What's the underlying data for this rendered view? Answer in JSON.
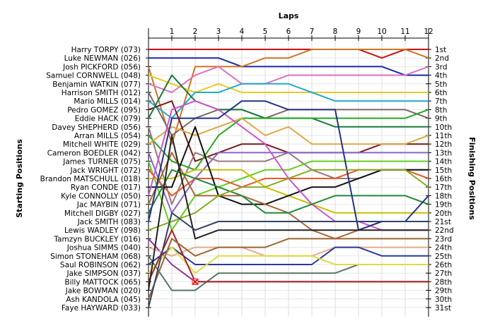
{
  "chart_data": {
    "type": "line",
    "subtype": "lap-chart",
    "title": "",
    "xlabel": "Laps",
    "ylabel_left": "Starting Positions",
    "ylabel_right": "Finishing Positions",
    "laps": [
      1,
      2,
      3,
      4,
      5,
      6,
      7,
      8,
      9,
      10,
      11,
      12
    ],
    "finishing_labels": [
      "1st",
      "2nd",
      "3rd",
      "4th",
      "5th",
      "6th",
      "7th",
      "8th",
      "9th",
      "10th",
      "11th",
      "12th",
      "13th",
      "14th",
      "15th",
      "16th",
      "17th",
      "18th",
      "19th",
      "20th",
      "21st",
      "22nd",
      "23rd",
      "24th",
      "25th",
      "26th",
      "27th",
      "28th",
      "29th",
      "30th",
      "31st"
    ],
    "grid": true,
    "crash_marker": {
      "lap": 2,
      "position": 28,
      "color": "#dd1111"
    },
    "series": [
      {
        "name": "Harry TORPY (073)",
        "color": "#cc1111",
        "positions": [
          1,
          1,
          1,
          1,
          1,
          1,
          1,
          1,
          1,
          1,
          2,
          1,
          1
        ]
      },
      {
        "name": "Luke NEWMAN (026)",
        "color": "#1a2aa8",
        "positions": [
          2,
          2,
          2,
          2,
          3,
          3,
          3,
          3,
          3,
          3,
          3,
          4,
          4
        ]
      },
      {
        "name": "Josh PICKFORD (056)",
        "color": "#cc7722",
        "positions": [
          3,
          12,
          3,
          3,
          3,
          2,
          2,
          1,
          1,
          1,
          1,
          1,
          2
        ]
      },
      {
        "name": "Samuel CORNWELL (048)",
        "color": "#e8cc22",
        "positions": [
          4,
          5,
          6,
          5,
          6,
          6,
          6,
          6,
          6,
          6,
          6,
          6,
          6
        ]
      },
      {
        "name": "Benjamin WATKIN (077)",
        "color": "#e070c0",
        "positions": [
          5,
          6,
          4,
          3,
          5,
          5,
          4,
          4,
          4,
          4,
          4,
          4,
          3
        ]
      },
      {
        "name": "Harrison SMITH (012)",
        "color": "#7a6a66",
        "positions": [
          6,
          11,
          9,
          8,
          8,
          9,
          8,
          8,
          8,
          8,
          8,
          8,
          9
        ]
      },
      {
        "name": "Mario MILLS (014)",
        "color": "#22aacc",
        "positions": [
          7,
          9,
          6,
          6,
          5,
          5,
          5,
          6,
          7,
          7,
          7,
          7,
          7
        ]
      },
      {
        "name": "Pedro GOMEZ (095)",
        "color": "#7a1a1a",
        "positions": [
          8,
          7,
          14,
          13,
          12,
          12,
          13,
          13,
          13,
          13,
          12,
          12,
          12
        ]
      },
      {
        "name": "Eddie HACK (079)",
        "color": "#1a7a3a",
        "positions": [
          9,
          4,
          7,
          8,
          8,
          9,
          9,
          9,
          10,
          10,
          10,
          10,
          10
        ]
      },
      {
        "name": "Davey SHEPHERD (056)",
        "color": "#9a7a7a",
        "positions": [
          10,
          19,
          13,
          14,
          14,
          14,
          13,
          15,
          16,
          16,
          15,
          15,
          15
        ]
      },
      {
        "name": "Arran MILLS (054)",
        "color": "#22aa22",
        "positions": [
          11,
          14,
          15,
          11,
          9,
          9,
          9,
          9,
          9,
          9,
          9,
          9,
          8
        ]
      },
      {
        "name": "Mitchell WHITE (029)",
        "color": "#ddaa44",
        "positions": [
          12,
          10,
          11,
          10,
          9,
          11,
          10,
          12,
          12,
          12,
          12,
          12,
          11
        ]
      },
      {
        "name": "Cameron BOEDLER (042)",
        "color": "#8866cc",
        "positions": [
          13,
          20,
          16,
          13,
          13,
          13,
          13,
          13,
          13,
          13,
          13,
          13,
          13
        ]
      },
      {
        "name": "James TURNER (075)",
        "color": "#66cc22",
        "positions": [
          14,
          22,
          18,
          17,
          16,
          15,
          15,
          14,
          14,
          14,
          14,
          14,
          14
        ]
      },
      {
        "name": "Jack WRIGHT (072)",
        "color": "#e85a2a",
        "positions": [
          15,
          18,
          16,
          16,
          17,
          16,
          16,
          16,
          16,
          15,
          15,
          15,
          16
        ]
      },
      {
        "name": "Brandon MATSCHULL (018)",
        "color": "#c8c000",
        "positions": [
          16,
          16,
          15,
          15,
          15,
          17,
          18,
          19,
          20,
          20,
          20,
          20,
          20
        ]
      },
      {
        "name": "Ryan CONDE (017)",
        "color": "#111111",
        "positions": [
          17,
          17,
          10,
          18,
          19,
          19,
          18,
          17,
          17,
          16,
          15,
          15,
          15
        ]
      },
      {
        "name": "Kyle CONNOLLY (050)",
        "color": "#cc55cc",
        "positions": [
          18,
          8,
          7,
          8,
          10,
          12,
          16,
          19,
          21,
          21,
          22,
          22,
          22
        ]
      },
      {
        "name": "Jac MAYBIN (071)",
        "color": "#aa6633",
        "positions": [
          19,
          13,
          18,
          18,
          18,
          19,
          20,
          22,
          23,
          22,
          21,
          21,
          21
        ]
      },
      {
        "name": "Mitchell DIGBY (027)",
        "color": "#22883a",
        "positions": [
          20,
          15,
          16,
          17,
          18,
          20,
          20,
          19,
          18,
          18,
          18,
          18,
          19
        ]
      },
      {
        "name": "Jack SMITH (083)",
        "color": "#223388",
        "positions": [
          21,
          9,
          9,
          9,
          7,
          7,
          8,
          8,
          8,
          22,
          21,
          21,
          18
        ]
      },
      {
        "name": "Lewis WADLEY (098)",
        "color": "#88aa22",
        "positions": [
          22,
          21,
          20,
          18,
          17,
          17,
          16,
          15,
          15,
          15,
          15,
          15,
          17
        ]
      },
      {
        "name": "Tamzyn BUCKLEY (016)",
        "color": "#993399",
        "positions": [
          23,
          26,
          28,
          28,
          28,
          28,
          28,
          28,
          28,
          28,
          28,
          28,
          28
        ]
      },
      {
        "name": "Joshua SIMMS (040)",
        "color": "#e8aa88",
        "positions": [
          24,
          25,
          24,
          24,
          24,
          25,
          25,
          25,
          24,
          24,
          24,
          24,
          24
        ]
      },
      {
        "name": "Simon STONEHAM (068)",
        "color": "#557766",
        "positions": [
          25,
          29,
          29,
          27,
          27,
          27,
          27,
          27,
          27,
          26,
          26,
          26,
          26
        ]
      },
      {
        "name": "Saul ROBINSON (062)",
        "color": "#2a3a99",
        "positions": [
          26,
          24,
          26,
          26,
          26,
          26,
          26,
          26,
          24,
          24,
          25,
          25,
          25
        ]
      },
      {
        "name": "Jake SIMPSON (037)",
        "color": "#dddd44",
        "positions": [
          27,
          24,
          27,
          25,
          25,
          25,
          25,
          25,
          26,
          26,
          26,
          26,
          26
        ]
      },
      {
        "name": "Billy MATTOCK (065)",
        "color": "#aa2222",
        "positions": [
          28,
          22,
          28,
          28,
          28,
          28,
          28,
          28,
          28,
          28,
          28,
          28,
          28
        ]
      },
      {
        "name": "Jake BOWMAN (020)",
        "color": "#222222",
        "positions": [
          29,
          11,
          23,
          22,
          22,
          22,
          22,
          22,
          22,
          22,
          22,
          22,
          22
        ]
      },
      {
        "name": "Ash KANDOLA (045)",
        "color": "#996633",
        "positions": [
          30,
          23,
          25,
          24,
          24,
          24,
          23,
          23,
          23,
          23,
          23,
          23,
          23
        ]
      },
      {
        "name": "Faye HAYWARD (033)",
        "color": "#334466",
        "positions": [
          31,
          20,
          22,
          21,
          21,
          21,
          21,
          21,
          21,
          21,
          21,
          21,
          21
        ]
      }
    ]
  }
}
